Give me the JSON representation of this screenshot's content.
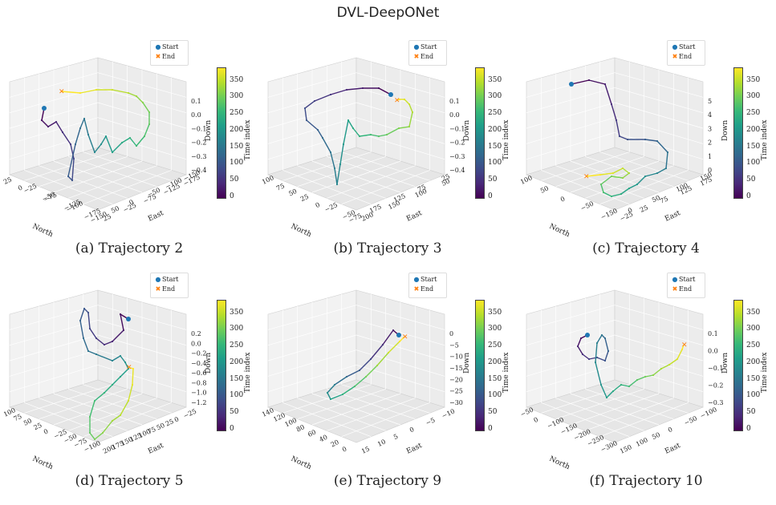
{
  "title": "DVL-DeepONet",
  "legend": {
    "start": "Start",
    "end": "End"
  },
  "colorbar": {
    "label": "Time index",
    "ticks": [
      "0",
      "50",
      "100",
      "150",
      "200",
      "250",
      "300",
      "350"
    ]
  },
  "colors": {
    "start_marker": "#1f77b4",
    "end_marker": "#ff7f0e"
  },
  "chart_data": [
    {
      "type": "line3d",
      "caption": "(a) Trajectory 2",
      "xlabel": "North",
      "ylabel": "East",
      "zlabel": "Down",
      "north_ticks": [
        "25",
        "−25",
        "−75",
        "−125",
        "−175"
      ],
      "east_ticks": [
        "25",
        "−25",
        "−75",
        "−125",
        "−175"
      ],
      "down_ticks": [
        "0.1",
        "0.0",
        "−0.1",
        "−0.2",
        "−0.3",
        "−0.4"
      ],
      "extra_north_ticks": [
        "0",
        "−50",
        "−100",
        "−150"
      ],
      "extra_east_ticks": [
        "50",
        "0",
        "−50",
        "−100",
        "−150"
      ]
    },
    {
      "type": "line3d",
      "caption": "(b) Trajectory 3",
      "xlabel": "North",
      "ylabel": "East",
      "zlabel": "Down",
      "north_ticks": [
        "100",
        "50",
        "0",
        "−50"
      ],
      "east_ticks": [
        "200",
        "150",
        "100",
        "50"
      ],
      "down_ticks": [
        "0.1",
        "0.0",
        "−0.1",
        "−0.2",
        "−0.3",
        "−0.4"
      ],
      "extra_north_ticks": [
        "75",
        "25",
        "−25",
        "−75"
      ],
      "extra_east_ticks": [
        "175",
        "125",
        "75",
        "25"
      ]
    },
    {
      "type": "line3d",
      "caption": "(c) Trajectory 4",
      "xlabel": "North",
      "ylabel": "East",
      "zlabel": "Down",
      "north_ticks": [
        "100",
        "50",
        "0",
        "−50",
        "−150"
      ],
      "east_ticks": [
        "−25",
        "25",
        "75",
        "125",
        "175"
      ],
      "down_ticks": [
        "5",
        "4",
        "3",
        "2",
        "1",
        "0"
      ],
      "extra_north_ticks": [],
      "extra_east_ticks": [
        "0",
        "50",
        "100",
        "150"
      ]
    },
    {
      "type": "line3d",
      "caption": "(d) Trajectory 5",
      "xlabel": "North",
      "ylabel": "East",
      "zlabel": "Down",
      "north_ticks": [
        "100",
        "75",
        "50",
        "25",
        "0",
        "−25",
        "−50",
        "−75",
        "−100"
      ],
      "east_ticks": [
        "200",
        "175",
        "150",
        "125",
        "100",
        "75",
        "50",
        "25",
        "0",
        "−25"
      ],
      "down_ticks": [
        "0.2",
        "0.0",
        "−0.2",
        "−0.4",
        "−0.6",
        "−0.8",
        "−1.0",
        "−1.2"
      ],
      "extra_north_ticks": [],
      "extra_east_ticks": []
    },
    {
      "type": "line3d",
      "caption": "(e) Trajectory 9",
      "xlabel": "North",
      "ylabel": "East",
      "zlabel": "Down",
      "north_ticks": [
        "140",
        "120",
        "100",
        "80",
        "60",
        "40",
        "20",
        "0"
      ],
      "east_ticks": [
        "15",
        "10",
        "5",
        "0",
        "−5",
        "−10"
      ],
      "down_ticks": [
        "0",
        "−5",
        "−10",
        "−15",
        "−20",
        "−25",
        "−30"
      ],
      "extra_north_ticks": [],
      "extra_east_ticks": []
    },
    {
      "type": "line3d",
      "caption": "(f) Trajectory 10",
      "xlabel": "North",
      "ylabel": "East",
      "zlabel": "Down",
      "north_ticks": [
        "−50",
        "0",
        "−100",
        "−150",
        "−200",
        "−250",
        "−300"
      ],
      "east_ticks": [
        "150",
        "100",
        "50",
        "0",
        "−50",
        "−100"
      ],
      "down_ticks": [
        "0.1",
        "0.0",
        "−0.1",
        "−0.2",
        "−0.3"
      ],
      "extra_north_ticks": [],
      "extra_east_ticks": []
    }
  ]
}
